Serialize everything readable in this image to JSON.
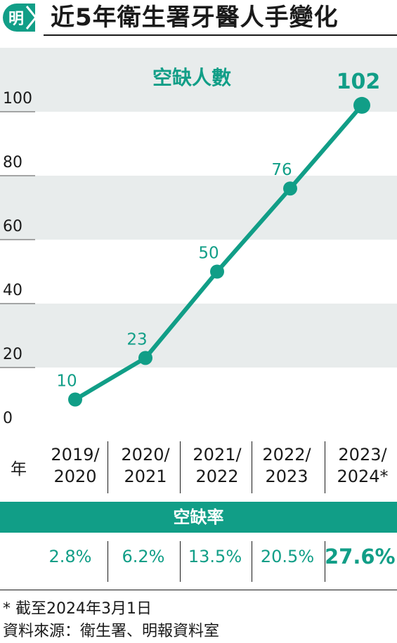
{
  "header": {
    "logo_char": "明",
    "title": "近5年衛生署牙醫人手變化"
  },
  "chart_data": {
    "type": "line",
    "title": "空缺人數",
    "categories": [
      "2019/\n2020",
      "2020/\n2021",
      "2021/\n2022",
      "2022/\n2023",
      "2023/\n2024*"
    ],
    "values": [
      10,
      23,
      50,
      76,
      102
    ],
    "value_labels": [
      "10",
      "23",
      "50",
      "76",
      "102"
    ],
    "yticks": [
      0,
      20,
      40,
      60,
      80,
      100
    ],
    "ylim": [
      0,
      120
    ],
    "grid": "alternating horizontal bands",
    "colors": {
      "line": "#119e87",
      "band": "#e8ecec",
      "text": "#1a1a1a"
    }
  },
  "table": {
    "year_label": "年",
    "years": [
      {
        "line1": "2019/",
        "line2": "2020"
      },
      {
        "line1": "2020/",
        "line2": "2021"
      },
      {
        "line1": "2021/",
        "line2": "2022"
      },
      {
        "line1": "2022/",
        "line2": "2023"
      },
      {
        "line1": "2023/",
        "line2": "2024*"
      }
    ],
    "rate_label": "空缺率",
    "rates": [
      "2.8%",
      "6.2%",
      "13.5%",
      "20.5%",
      "27.6%"
    ]
  },
  "footnotes": {
    "note": "* 截至2024年3月1日",
    "source": "資料來源：衛生署、明報資料室"
  }
}
